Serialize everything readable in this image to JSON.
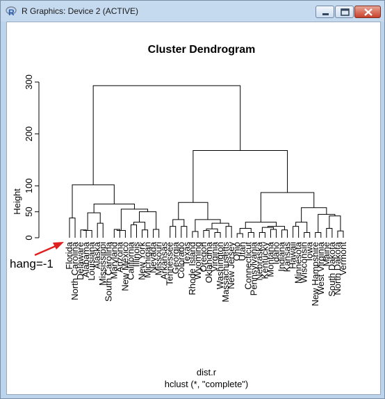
{
  "window": {
    "title": "R Graphics: Device 2 (ACTIVE)",
    "icon": "r-logo-icon",
    "controls": [
      "minimize-icon",
      "maximize-icon",
      "close-icon"
    ]
  },
  "plot": {
    "title": "Cluster Dendrogram",
    "ylabel": "Height",
    "xlabel": "dist.r",
    "sub": "hclust (*, \"complete\")",
    "yticks": [
      "0",
      "50",
      "100",
      "200",
      "300"
    ],
    "annotation": "hang=-1",
    "arrow_color": "#e02020"
  },
  "chart_data": {
    "type": "dendrogram",
    "title": "Cluster Dendrogram",
    "ylabel": "Height",
    "xlabel": "dist.r",
    "sub": "hclust (*, \"complete\")",
    "yticks": [
      0,
      50,
      100,
      200,
      300
    ],
    "ylim": [
      0,
      300
    ],
    "leaves": [
      "Florida",
      "North Carolina",
      "Delaware",
      "Alabama",
      "Louisiana",
      "Alaska",
      "Mississippi",
      "South Carolina",
      "Maryland",
      "Arizona",
      "New Mexico",
      "California",
      "Illinois",
      "New York",
      "Michigan",
      "Nevada",
      "Missouri",
      "Arkansas",
      "Tennessee",
      "Georgia",
      "Colorado",
      "Texas",
      "Rhode Island",
      "Wyoming",
      "Oregon",
      "Oklahoma",
      "Virginia",
      "Washington",
      "Massachusetts",
      "New Jersey",
      "Ohio",
      "Utah",
      "Connecticut",
      "Pennsylvania",
      "Nebraska",
      "Kentucky",
      "Montana",
      "Idaho",
      "Indiana",
      "Kansas",
      "Hawaii",
      "Minnesota",
      "Wisconsin",
      "Iowa",
      "New Hampshire",
      "West Virginia",
      "Maine",
      "South Dakota",
      "North Dakota",
      "Vermont"
    ],
    "merges": [
      [
        "Florida",
        "North Carolina",
        38
      ],
      [
        "Delaware",
        "Alabama",
        15
      ],
      [
        [
          "Delaware",
          "Alabama"
        ],
        [
          "Louisiana"
        ],
        14
      ],
      [
        [
          "Alaska"
        ],
        [
          "Mississippi",
          "South Carolina"
        ],
        28
      ],
      [
        [
          "Delaware",
          "Alabama",
          "Louisiana"
        ],
        [
          "Alaska",
          "Mississippi",
          "South Carolina"
        ],
        48
      ],
      [
        "Maryland",
        "Arizona",
        16
      ],
      [
        [
          "Maryland",
          "Arizona"
        ],
        [
          "New Mexico"
        ],
        14
      ],
      [
        "California",
        "Illinois",
        25
      ],
      [
        "New York",
        "Michigan",
        15
      ],
      [
        [
          "California",
          "Illinois"
        ],
        [
          "New York",
          "Michigan"
        ],
        30
      ],
      [
        [
          "Nevada"
        ],
        [
          "Missouri",
          "Arkansas"
        ],
        16
      ],
      [
        [
          "California",
          "Illinois",
          "New York",
          "Michigan"
        ],
        [
          "Nevada",
          "Missouri",
          "Arkansas"
        ],
        50
      ],
      [
        [
          "Maryland",
          "Arizona",
          "New Mexico"
        ],
        [
          "California",
          "Illinois",
          "New York",
          "Michigan",
          "Nevada",
          "Missouri",
          "Arkansas"
        ],
        55
      ],
      [
        [
          "Delaware",
          "Alabama",
          "Louisiana",
          "Alaska",
          "Mississippi",
          "South Carolina"
        ],
        [
          "Maryland",
          "Arizona",
          "New Mexico",
          "California",
          "Illinois",
          "New York",
          "Michigan",
          "Nevada",
          "Missouri",
          "Arkansas"
        ],
        65
      ],
      [
        [
          "Florida",
          "North Carolina"
        ],
        [
          "Delaware",
          "Alabama",
          "Louisiana",
          "Alaska",
          "Mississippi",
          "South Carolina",
          "Maryland",
          "Arizona",
          "New Mexico",
          "California",
          "Illinois",
          "New York",
          "Michigan",
          "Nevada",
          "Missouri",
          "Arkansas"
        ],
        102
      ],
      [
        "Tennessee",
        "Georgia",
        22
      ],
      [
        [
          "Colorado"
        ],
        [
          "Texas"
        ],
        22
      ],
      [
        [
          "Tennessee",
          "Georgia"
        ],
        [
          "Colorado",
          "Texas"
        ],
        35
      ],
      [
        "Rhode Island",
        "Wyoming",
        12
      ],
      [
        "Oregon",
        "Oklahoma",
        14
      ],
      [
        [
          "Virginia"
        ],
        [
          "Washington"
        ],
        10
      ],
      [
        [
          "Oregon",
          "Oklahoma"
        ],
        [
          "Virginia",
          "Washington"
        ],
        17
      ],
      [
        [
          "Massachusetts"
        ],
        [
          "New Jersey"
        ],
        22
      ],
      [
        [
          "Oregon",
          "Oklahoma",
          "Virginia",
          "Washington"
        ],
        [
          "Massachusetts",
          "New Jersey"
        ],
        28
      ],
      [
        [
          "Rhode Island",
          "Wyoming"
        ],
        [
          "Oregon",
          "Oklahoma",
          "Virginia",
          "Washington",
          "Massachusetts",
          "New Jersey"
        ],
        35
      ],
      [
        [
          "Tennessee",
          "Georgia",
          "Colorado",
          "Texas"
        ],
        [
          "Rhode Island",
          "Wyoming",
          "Oregon",
          "Oklahoma",
          "Virginia",
          "Washington",
          "Massachusetts",
          "New Jersey"
        ],
        68
      ],
      [
        "Ohio",
        "Utah",
        8
      ],
      [
        [
          "Connecticut"
        ],
        [
          "Pennsylvania"
        ],
        10
      ],
      [
        [
          "Ohio",
          "Utah"
        ],
        [
          "Connecticut",
          "Pennsylvania"
        ],
        18
      ],
      [
        "Nebraska",
        "Kentucky",
        10
      ],
      [
        [
          "Montana"
        ],
        [
          "Idaho"
        ],
        16
      ],
      [
        [
          "Nebraska",
          "Kentucky"
        ],
        [
          "Montana",
          "Idaho"
        ],
        20
      ],
      [
        [
          "Indiana"
        ],
        [
          "Kansas"
        ],
        15
      ],
      [
        [
          "Nebraska",
          "Kentucky",
          "Montana",
          "Idaho"
        ],
        [
          "Indiana",
          "Kansas"
        ],
        22
      ],
      [
        [
          "Ohio",
          "Utah",
          "Connecticut",
          "Pennsylvania"
        ],
        [
          "Nebraska",
          "Kentucky",
          "Montana",
          "Idaho",
          "Indiana",
          "Kansas"
        ],
        30
      ],
      [
        "Hawaii",
        "Minnesota",
        22
      ],
      [
        [
          "Wisconsin"
        ],
        [
          "Iowa"
        ],
        10
      ],
      [
        [
          "Hawaii",
          "Minnesota"
        ],
        [
          "Wisconsin",
          "Iowa"
        ],
        30
      ],
      [
        "New Hampshire",
        "West Virginia",
        10
      ],
      [
        "Maine",
        "South Dakota",
        18
      ],
      [
        [
          "North Dakota"
        ],
        [
          "Vermont"
        ],
        13
      ],
      [
        [
          "Maine",
          "South Dakota"
        ],
        [
          "North Dakota",
          "Vermont"
        ],
        42
      ],
      [
        [
          "New Hampshire",
          "West Virginia"
        ],
        [
          "Maine",
          "South Dakota",
          "North Dakota",
          "Vermont"
        ],
        45
      ],
      [
        [
          "Hawaii",
          "Minnesota",
          "Wisconsin",
          "Iowa"
        ],
        [
          "New Hampshire",
          "West Virginia",
          "Maine",
          "South Dakota",
          "North Dakota",
          "Vermont"
        ],
        58
      ],
      [
        [
          "Ohio",
          "Utah",
          "Connecticut",
          "Pennsylvania",
          "Nebraska",
          "Kentucky",
          "Montana",
          "Idaho",
          "Indiana",
          "Kansas"
        ],
        [
          "Hawaii",
          "Minnesota",
          "Wisconsin",
          "Iowa",
          "New Hampshire",
          "West Virginia",
          "Maine",
          "South Dakota",
          "North Dakota",
          "Vermont"
        ],
        87
      ],
      [
        [
          "Tennessee",
          "Georgia",
          "Colorado",
          "Texas",
          "Rhode Island",
          "Wyoming",
          "Oregon",
          "Oklahoma",
          "Virginia",
          "Washington",
          "Massachusetts",
          "New Jersey"
        ],
        [
          "Ohio",
          "Utah",
          "Connecticut",
          "Pennsylvania",
          "Nebraska",
          "Kentucky",
          "Montana",
          "Idaho",
          "Indiana",
          "Kansas",
          "Hawaii",
          "Minnesota",
          "Wisconsin",
          "Iowa",
          "New Hampshire",
          "West Virginia",
          "Maine",
          "South Dakota",
          "North Dakota",
          "Vermont"
        ],
        168
      ],
      [
        [
          "Florida",
          "North Carolina",
          "Delaware",
          "Alabama",
          "Louisiana",
          "Alaska",
          "Mississippi",
          "South Carolina",
          "Maryland",
          "Arizona",
          "New Mexico",
          "California",
          "Illinois",
          "New York",
          "Michigan",
          "Nevada",
          "Missouri",
          "Arkansas"
        ],
        [
          "Tennessee",
          "Georgia",
          "Colorado",
          "Texas",
          "Rhode Island",
          "Wyoming",
          "Oregon",
          "Oklahoma",
          "Virginia",
          "Washington",
          "Massachusetts",
          "New Jersey",
          "Ohio",
          "Utah",
          "Connecticut",
          "Pennsylvania",
          "Nebraska",
          "Kentucky",
          "Montana",
          "Idaho",
          "Indiana",
          "Kansas",
          "Hawaii",
          "Minnesota",
          "Wisconsin",
          "Iowa",
          "New Hampshire",
          "West Virginia",
          "Maine",
          "South Dakota",
          "North Dakota",
          "Vermont"
        ],
        293
      ]
    ]
  }
}
